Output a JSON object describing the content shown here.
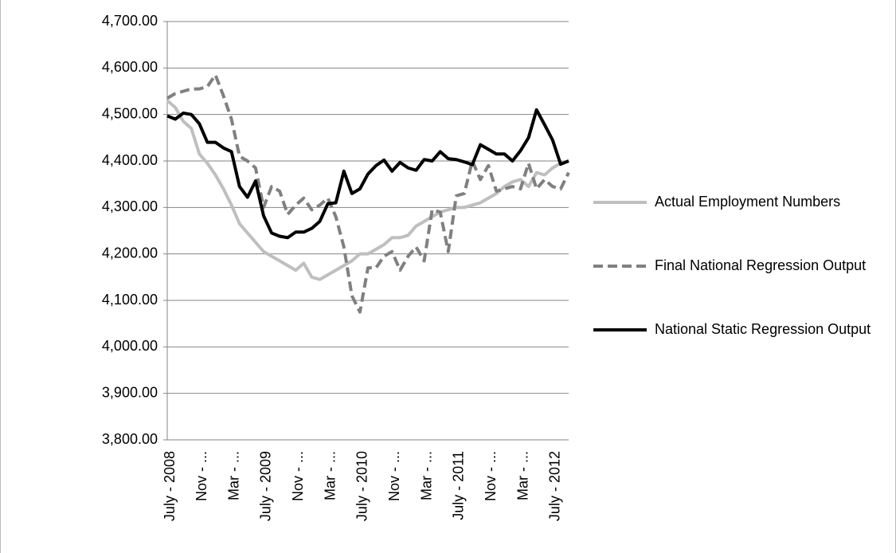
{
  "chart_data": {
    "type": "line",
    "categories": [
      "July - 2008",
      null,
      null,
      null,
      "Nov - ...",
      null,
      null,
      null,
      "Mar - ...",
      null,
      null,
      null,
      "July - 2009",
      null,
      null,
      null,
      "Nov - ...",
      null,
      null,
      null,
      "Mar - ...",
      null,
      null,
      null,
      "July - 2010",
      null,
      null,
      null,
      "Nov - ...",
      null,
      null,
      null,
      "Mar - ...",
      null,
      null,
      null,
      "July - 2011",
      null,
      null,
      null,
      "Nov - ...",
      null,
      null,
      null,
      "Mar - ...",
      null,
      null,
      null,
      "July - 2012",
      null,
      null
    ],
    "series": [
      {
        "name": "Actual Employment Numbers",
        "color": "#bfbfbf",
        "dash": false,
        "values": [
          4530,
          4515,
          4485,
          4470,
          4415,
          4395,
          4370,
          4340,
          4305,
          4265,
          4245,
          4225,
          4205,
          4195,
          4185,
          4175,
          4165,
          4180,
          4150,
          4145,
          4155,
          4165,
          4175,
          4185,
          4200,
          4200,
          4210,
          4220,
          4235,
          4235,
          4240,
          4260,
          4270,
          4280,
          4290,
          4295,
          4300,
          4300,
          4305,
          4310,
          4320,
          4330,
          4345,
          4355,
          4360,
          4345,
          4375,
          4370,
          4385,
          4395,
          4400
        ]
      },
      {
        "name": "Final National Regression Output",
        "color": "#808080",
        "dash": true,
        "values": [
          4535,
          4545,
          4550,
          4555,
          4555,
          4560,
          4585,
          4540,
          4490,
          4410,
          4400,
          4385,
          4300,
          4345,
          4335,
          4285,
          4305,
          4320,
          4295,
          4305,
          4320,
          4280,
          4215,
          4110,
          4075,
          4170,
          4170,
          4195,
          4205,
          4165,
          4195,
          4215,
          4185,
          4295,
          4290,
          4205,
          4325,
          4330,
          4400,
          4360,
          4390,
          4335,
          4340,
          4345,
          4340,
          4395,
          4340,
          4360,
          4345,
          4340,
          4375
        ]
      },
      {
        "name": "National Static Regression Output",
        "color": "#000000",
        "dash": false,
        "values": [
          4497,
          4490,
          4503,
          4500,
          4480,
          4440,
          4440,
          4428,
          4420,
          4345,
          4322,
          4357,
          4282,
          4245,
          4238,
          4235,
          4247,
          4247,
          4255,
          4270,
          4308,
          4310,
          4378,
          4330,
          4340,
          4372,
          4390,
          4402,
          4378,
          4397,
          4385,
          4380,
          4403,
          4400,
          4420,
          4405,
          4403,
          4398,
          4392,
          4435,
          4425,
          4415,
          4415,
          4400,
          4422,
          4450,
          4510,
          4478,
          4445,
          4393,
          4400
        ]
      }
    ],
    "ylim": [
      3800,
      4700
    ],
    "yticks": [
      {
        "value": 3800,
        "label": "3,800.00"
      },
      {
        "value": 3900,
        "label": "3,900.00"
      },
      {
        "value": 4000,
        "label": "4,000.00"
      },
      {
        "value": 4100,
        "label": "4,100.00"
      },
      {
        "value": 4200,
        "label": "4,200.00"
      },
      {
        "value": 4300,
        "label": "4,300.00"
      },
      {
        "value": 4400,
        "label": "4,400.00"
      },
      {
        "value": 4500,
        "label": "4,500.00"
      },
      {
        "value": 4600,
        "label": "4,600.00"
      },
      {
        "value": 4700,
        "label": "4,700.00"
      }
    ],
    "grid": true,
    "legend": "right"
  }
}
